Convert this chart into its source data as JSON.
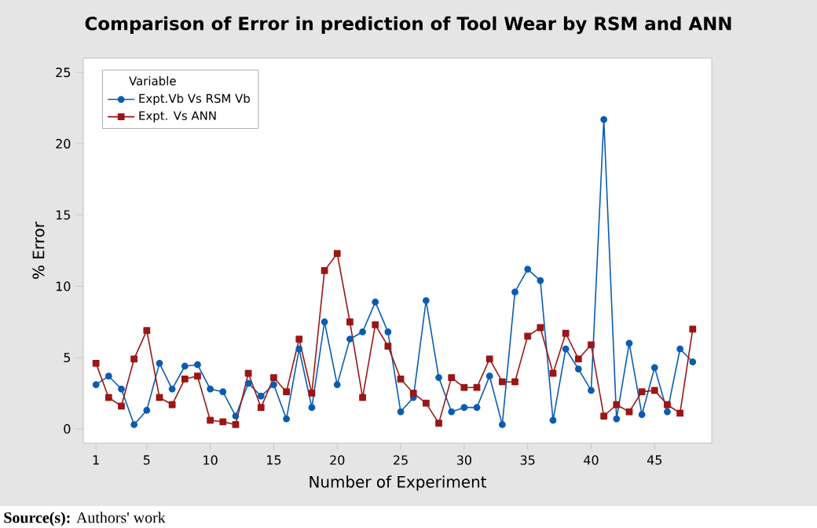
{
  "chart_data": {
    "type": "line",
    "title": "Comparison of Error in prediction of Tool Wear by RSM and ANN",
    "xlabel": "Number of Experiment",
    "ylabel": "% Error",
    "legend_title": "Variable",
    "legend": "top left",
    "grid": false,
    "annotations": [
      "**Source(s):** Authors' work"
    ],
    "x": [
      1,
      2,
      3,
      4,
      5,
      6,
      7,
      8,
      9,
      10,
      11,
      12,
      13,
      14,
      15,
      16,
      17,
      18,
      19,
      20,
      21,
      22,
      23,
      24,
      25,
      26,
      27,
      28,
      29,
      30,
      31,
      32,
      33,
      34,
      35,
      36,
      37,
      38,
      39,
      40,
      41,
      42,
      43,
      44,
      45,
      46,
      47,
      48
    ],
    "xlim": [
      0,
      49.5
    ],
    "xticks": [
      1,
      5,
      10,
      15,
      20,
      25,
      30,
      35,
      40,
      45
    ],
    "ylim": [
      -1,
      26
    ],
    "yticks": [
      0,
      5,
      10,
      15,
      20,
      25
    ],
    "series": [
      {
        "name": "Expt.Vb Vs RSM Vb",
        "color": "#0a5cb0",
        "marker": "circle",
        "values": [
          3.1,
          3.7,
          2.8,
          0.3,
          1.3,
          4.6,
          2.8,
          4.4,
          4.5,
          2.8,
          2.6,
          0.9,
          3.2,
          2.3,
          3.1,
          0.7,
          5.6,
          1.5,
          7.5,
          3.1,
          6.3,
          6.8,
          8.9,
          6.8,
          1.2,
          2.2,
          9.0,
          3.6,
          1.2,
          1.5,
          1.5,
          3.7,
          0.3,
          9.6,
          11.2,
          10.4,
          0.6,
          5.6,
          4.2,
          2.7,
          21.7,
          0.7,
          6.0,
          1.0,
          4.3,
          1.2,
          5.6,
          4.7
        ]
      },
      {
        "name": "Expt. Vs ANN",
        "color": "#9b1616",
        "marker": "square",
        "values": [
          4.6,
          2.2,
          1.6,
          4.9,
          6.9,
          2.2,
          1.7,
          3.5,
          3.7,
          0.6,
          0.5,
          0.3,
          3.9,
          1.5,
          3.6,
          2.6,
          6.3,
          2.5,
          11.1,
          12.3,
          7.5,
          2.2,
          7.3,
          5.8,
          3.5,
          2.5,
          1.8,
          0.4,
          3.6,
          2.9,
          2.9,
          4.9,
          3.3,
          3.3,
          6.5,
          7.1,
          3.9,
          6.7,
          4.9,
          5.9,
          0.9,
          1.7,
          1.2,
          2.6,
          2.7,
          1.7,
          1.1,
          7.0
        ]
      }
    ]
  }
}
